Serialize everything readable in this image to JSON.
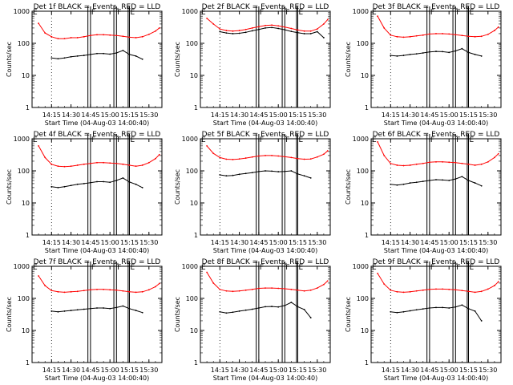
{
  "start_time_label": "Start Time (04-Aug-03 14:00:40)",
  "y_axis_label": "Counts/sec",
  "x_ticks": [
    "14:15",
    "14:30",
    "14:45",
    "15:00",
    "15:15",
    "15:30"
  ],
  "y_ticks": [
    "1",
    "10",
    "100",
    "1000"
  ],
  "colors": {
    "events": "#000000",
    "lld": "#ff0000"
  },
  "chart_data": [
    {
      "type": "line",
      "title": "Det 1f BLACK = Events, RED = LLD",
      "xlabel": "Start Time (04-Aug-03 14:00:40)",
      "ylabel": "Counts/sec",
      "ylog": true,
      "ylim": [
        1,
        1000
      ],
      "xlim": [
        "14:00",
        "15:40"
      ],
      "x": [
        "14:05",
        "14:10",
        "14:15",
        "14:20",
        "14:25",
        "14:30",
        "14:35",
        "14:40",
        "14:45",
        "14:50",
        "14:55",
        "15:00",
        "15:05",
        "15:10",
        "15:15",
        "15:20",
        "15:25",
        "15:30",
        "15:35",
        "15:38"
      ],
      "series": [
        {
          "name": "LLD",
          "values": [
            420,
            210,
            160,
            140,
            140,
            150,
            150,
            160,
            175,
            185,
            185,
            180,
            175,
            165,
            155,
            150,
            160,
            190,
            240,
            300
          ]
        },
        {
          "name": "Events",
          "values": [
            null,
            null,
            35,
            33,
            35,
            38,
            40,
            42,
            45,
            48,
            48,
            46,
            50,
            60,
            45,
            40,
            32,
            null,
            null,
            null
          ]
        }
      ]
    },
    {
      "type": "line",
      "title": "Det 2f BLACK = Events, RED = LLD",
      "xlabel": "Start Time (04-Aug-03 14:00:40)",
      "ylabel": "Counts/sec",
      "ylog": true,
      "ylim": [
        1,
        1000
      ],
      "xlim": [
        "14:00",
        "15:40"
      ],
      "x": [
        "14:05",
        "14:10",
        "14:15",
        "14:20",
        "14:25",
        "14:30",
        "14:35",
        "14:40",
        "14:45",
        "14:50",
        "14:55",
        "15:00",
        "15:05",
        "15:10",
        "15:15",
        "15:20",
        "15:25",
        "15:30",
        "15:35",
        "15:38"
      ],
      "series": [
        {
          "name": "LLD",
          "values": [
            600,
            400,
            280,
            250,
            240,
            250,
            270,
            300,
            330,
            360,
            370,
            350,
            320,
            290,
            260,
            240,
            240,
            280,
            400,
            550
          ]
        },
        {
          "name": "Events",
          "values": [
            null,
            null,
            230,
            210,
            200,
            205,
            220,
            245,
            270,
            300,
            310,
            290,
            265,
            235,
            215,
            200,
            200,
            230,
            150,
            null
          ]
        }
      ]
    },
    {
      "type": "line",
      "title": "Det 3f BLACK = Events, RED = LLD",
      "xlabel": "Start Time (04-Aug-03 14:00:40)",
      "ylabel": "Counts/sec",
      "ylog": true,
      "ylim": [
        1,
        1000
      ],
      "xlim": [
        "14:00",
        "15:40"
      ],
      "x": [
        "14:05",
        "14:10",
        "14:15",
        "14:20",
        "14:25",
        "14:30",
        "14:35",
        "14:40",
        "14:45",
        "14:50",
        "14:55",
        "15:00",
        "15:05",
        "15:10",
        "15:15",
        "15:20",
        "15:25",
        "15:30",
        "15:35",
        "15:38"
      ],
      "series": [
        {
          "name": "LLD",
          "values": [
            700,
            300,
            180,
            160,
            155,
            160,
            170,
            180,
            195,
            200,
            200,
            195,
            185,
            175,
            165,
            160,
            165,
            190,
            250,
            320
          ]
        },
        {
          "name": "Events",
          "values": [
            null,
            null,
            42,
            40,
            42,
            45,
            47,
            50,
            54,
            56,
            55,
            52,
            58,
            68,
            52,
            45,
            40,
            null,
            null,
            null
          ]
        }
      ]
    },
    {
      "type": "line",
      "title": "Det 4f BLACK = Events, RED = LLD",
      "xlabel": "Start Time (04-Aug-03 14:00:40)",
      "ylabel": "Counts/sec",
      "ylog": true,
      "ylim": [
        1,
        1000
      ],
      "xlim": [
        "14:00",
        "15:40"
      ],
      "x": [
        "14:05",
        "14:10",
        "14:15",
        "14:20",
        "14:25",
        "14:30",
        "14:35",
        "14:40",
        "14:45",
        "14:50",
        "14:55",
        "15:00",
        "15:05",
        "15:10",
        "15:15",
        "15:20",
        "15:25",
        "15:30",
        "15:35",
        "15:38"
      ],
      "series": [
        {
          "name": "LLD",
          "values": [
            600,
            260,
            160,
            140,
            135,
            140,
            150,
            160,
            170,
            180,
            180,
            175,
            170,
            160,
            150,
            140,
            150,
            180,
            240,
            320
          ]
        },
        {
          "name": "Events",
          "values": [
            null,
            null,
            32,
            30,
            32,
            35,
            38,
            40,
            43,
            46,
            46,
            44,
            50,
            60,
            45,
            38,
            30,
            null,
            null,
            null
          ]
        }
      ]
    },
    {
      "type": "line",
      "title": "Det 5f BLACK = Events, RED = LLD",
      "xlabel": "Start Time (04-Aug-03 14:00:40)",
      "ylabel": "Counts/sec",
      "ylog": true,
      "ylim": [
        1,
        1000
      ],
      "xlim": [
        "14:00",
        "15:40"
      ],
      "x": [
        "14:05",
        "14:10",
        "14:15",
        "14:20",
        "14:25",
        "14:30",
        "14:35",
        "14:40",
        "14:45",
        "14:50",
        "14:55",
        "15:00",
        "15:05",
        "15:10",
        "15:15",
        "15:20",
        "15:25",
        "15:30",
        "15:35",
        "15:38"
      ],
      "series": [
        {
          "name": "LLD",
          "values": [
            600,
            350,
            260,
            230,
            225,
            235,
            250,
            270,
            290,
            300,
            300,
            290,
            275,
            260,
            240,
            230,
            235,
            270,
            330,
            420
          ]
        },
        {
          "name": "Events",
          "values": [
            null,
            null,
            75,
            70,
            72,
            78,
            83,
            88,
            95,
            100,
            98,
            94,
            96,
            100,
            80,
            70,
            60,
            null,
            null,
            null
          ]
        }
      ]
    },
    {
      "type": "line",
      "title": "Det 6f BLACK = Events, RED = LLD",
      "xlabel": "Start Time (04-Aug-03 14:00:40)",
      "ylabel": "Counts/sec",
      "ylog": true,
      "ylim": [
        1,
        1000
      ],
      "xlim": [
        "14:00",
        "15:40"
      ],
      "x": [
        "14:05",
        "14:10",
        "14:15",
        "14:20",
        "14:25",
        "14:30",
        "14:35",
        "14:40",
        "14:45",
        "14:50",
        "14:55",
        "15:00",
        "15:05",
        "15:10",
        "15:15",
        "15:20",
        "15:25",
        "15:30",
        "15:35",
        "15:38"
      ],
      "series": [
        {
          "name": "LLD",
          "values": [
            800,
            300,
            170,
            150,
            145,
            150,
            160,
            170,
            185,
            190,
            190,
            185,
            180,
            170,
            160,
            150,
            160,
            190,
            260,
            340
          ]
        },
        {
          "name": "Events",
          "values": [
            null,
            null,
            38,
            36,
            38,
            42,
            44,
            47,
            50,
            53,
            52,
            50,
            56,
            66,
            50,
            42,
            34,
            null,
            null,
            null
          ]
        }
      ]
    },
    {
      "type": "line",
      "title": "Det 7f BLACK = Events, RED = LLD",
      "xlabel": "Start Time (04-Aug-03 14:00:40)",
      "ylabel": "Counts/sec",
      "ylog": true,
      "ylim": [
        1,
        1000
      ],
      "xlim": [
        "14:00",
        "15:40"
      ],
      "x": [
        "14:05",
        "14:10",
        "14:15",
        "14:20",
        "14:25",
        "14:30",
        "14:35",
        "14:40",
        "14:45",
        "14:50",
        "14:55",
        "15:00",
        "15:05",
        "15:10",
        "15:15",
        "15:20",
        "15:25",
        "15:30",
        "15:35",
        "15:38"
      ],
      "series": [
        {
          "name": "LLD",
          "values": [
            500,
            250,
            175,
            160,
            155,
            160,
            165,
            175,
            185,
            190,
            190,
            185,
            180,
            170,
            160,
            155,
            160,
            185,
            230,
            290
          ]
        },
        {
          "name": "Events",
          "values": [
            null,
            null,
            40,
            38,
            40,
            42,
            44,
            46,
            48,
            50,
            50,
            48,
            52,
            58,
            48,
            42,
            36,
            null,
            null,
            null
          ]
        }
      ]
    },
    {
      "type": "line",
      "title": "Det 8f BLACK = Events, RED = LLD",
      "xlabel": "Start Time (04-Aug-03 14:00:40)",
      "ylabel": "Counts/sec",
      "ylog": true,
      "ylim": [
        1,
        1000
      ],
      "xlim": [
        "14:00",
        "15:40"
      ],
      "x": [
        "14:05",
        "14:10",
        "14:15",
        "14:20",
        "14:25",
        "14:30",
        "14:35",
        "14:40",
        "14:45",
        "14:50",
        "14:55",
        "15:00",
        "15:05",
        "15:10",
        "15:15",
        "15:20",
        "15:25",
        "15:30",
        "15:35",
        "15:38"
      ],
      "series": [
        {
          "name": "LLD",
          "values": [
            650,
            300,
            190,
            170,
            165,
            170,
            180,
            190,
            205,
            210,
            210,
            205,
            200,
            190,
            180,
            170,
            180,
            210,
            270,
            350
          ]
        },
        {
          "name": "Events",
          "values": [
            null,
            null,
            38,
            35,
            37,
            40,
            43,
            46,
            50,
            55,
            56,
            54,
            60,
            75,
            55,
            45,
            25,
            null,
            null,
            null
          ]
        }
      ]
    },
    {
      "type": "line",
      "title": "Det 9f BLACK = Events, RED = LLD",
      "xlabel": "Start Time (04-Aug-03 14:00:40)",
      "ylabel": "Counts/sec",
      "ylog": true,
      "ylim": [
        1,
        1000
      ],
      "xlim": [
        "14:00",
        "15:40"
      ],
      "x": [
        "14:05",
        "14:10",
        "14:15",
        "14:20",
        "14:25",
        "14:30",
        "14:35",
        "14:40",
        "14:45",
        "14:50",
        "14:55",
        "15:00",
        "15:05",
        "15:10",
        "15:15",
        "15:20",
        "15:25",
        "15:30",
        "15:35",
        "15:38"
      ],
      "series": [
        {
          "name": "LLD",
          "values": [
            600,
            280,
            180,
            160,
            155,
            160,
            170,
            180,
            190,
            195,
            195,
            190,
            185,
            175,
            165,
            155,
            165,
            195,
            250,
            330
          ]
        },
        {
          "name": "Events",
          "values": [
            null,
            null,
            38,
            36,
            38,
            41,
            44,
            47,
            50,
            52,
            52,
            50,
            54,
            62,
            48,
            40,
            20,
            null,
            null,
            null
          ]
        }
      ]
    }
  ]
}
